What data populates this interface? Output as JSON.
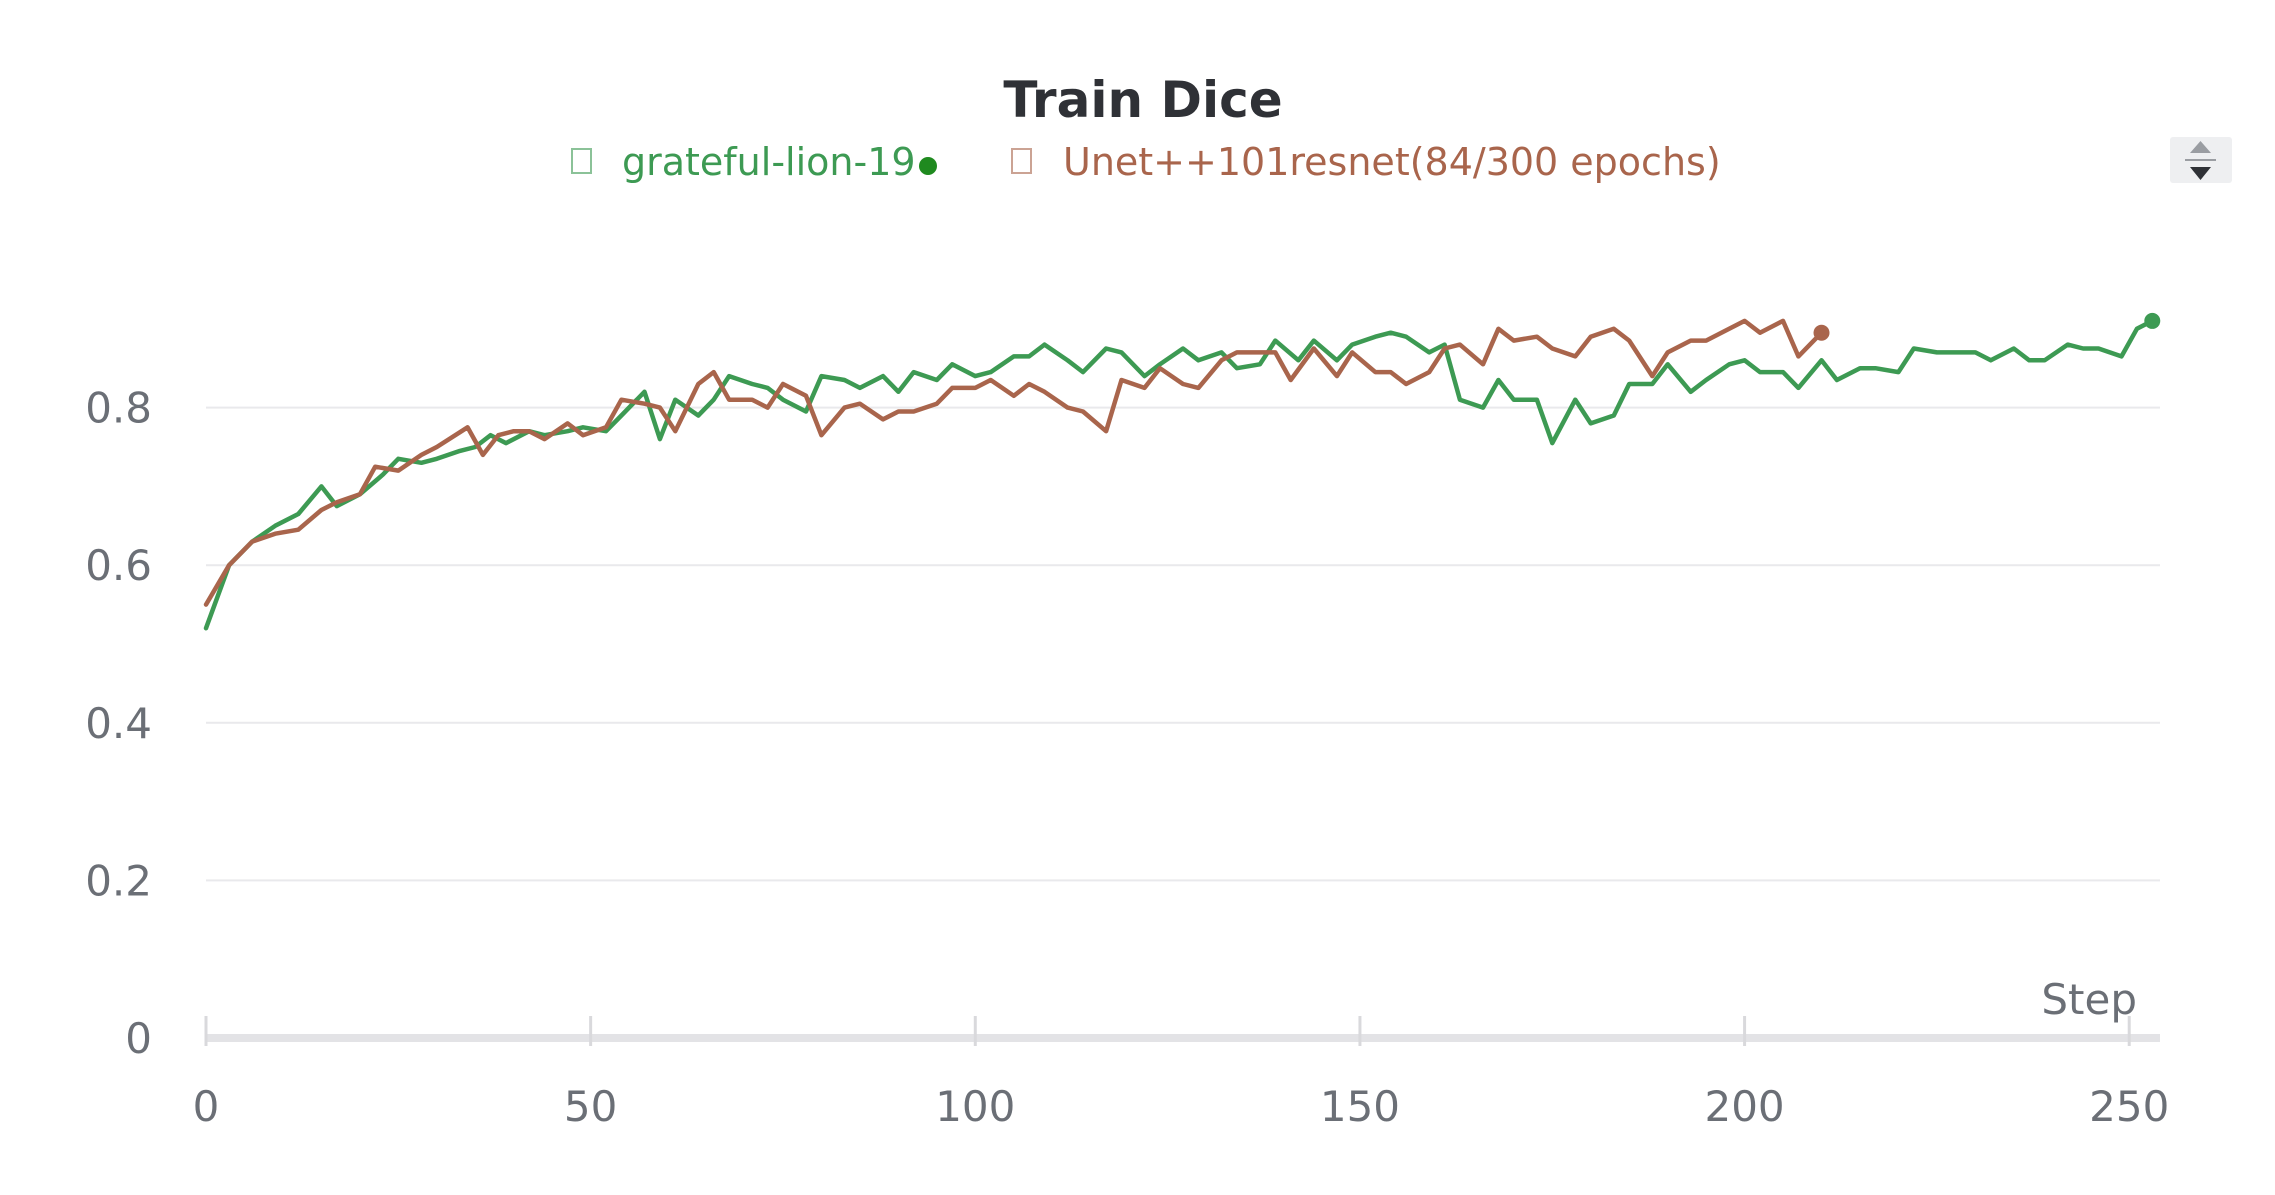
{
  "chart_data": {
    "type": "line",
    "title": "Train Dice",
    "xlabel": "Step",
    "ylabel": "",
    "xlim": [
      0,
      254
    ],
    "ylim": [
      0,
      1
    ],
    "x_ticks": [
      0,
      50,
      100,
      150,
      200,
      250
    ],
    "x_tick_labels": [
      "0",
      "50",
      "100",
      "150",
      "200",
      "250"
    ],
    "y_ticks": [
      0,
      0.2,
      0.4,
      0.6,
      0.8
    ],
    "y_tick_labels": [
      "0",
      "0.2",
      "0.4",
      "0.6",
      "0.8"
    ],
    "grid": true,
    "legend_position": "top-center",
    "series": [
      {
        "name": "grateful-lion-19",
        "color": "#3d9a53",
        "x": [
          0,
          3,
          6,
          9,
          12,
          15,
          17,
          20,
          23,
          25,
          28,
          30,
          33,
          35,
          37,
          39,
          42,
          44,
          47,
          49,
          52,
          54,
          57,
          59,
          61,
          64,
          66,
          68,
          71,
          73,
          75,
          78,
          80,
          83,
          85,
          88,
          90,
          92,
          95,
          97,
          100,
          102,
          105,
          107,
          109,
          112,
          114,
          117,
          119,
          122,
          124,
          127,
          129,
          132,
          134,
          137,
          139,
          142,
          144,
          147,
          149,
          152,
          154,
          156,
          159,
          161,
          163,
          166,
          168,
          170,
          173,
          175,
          178,
          180,
          183,
          185,
          188,
          190,
          193,
          195,
          198,
          200,
          202,
          205,
          207,
          210,
          212,
          215,
          217,
          220,
          222,
          225,
          227,
          230,
          232,
          235,
          237,
          239,
          242,
          244,
          246,
          249,
          251,
          253
        ],
        "y": [
          0.52,
          0.6,
          0.63,
          0.65,
          0.665,
          0.7,
          0.675,
          0.69,
          0.715,
          0.735,
          0.73,
          0.735,
          0.745,
          0.75,
          0.765,
          0.755,
          0.77,
          0.765,
          0.77,
          0.775,
          0.77,
          0.79,
          0.82,
          0.76,
          0.81,
          0.79,
          0.81,
          0.84,
          0.83,
          0.825,
          0.81,
          0.795,
          0.84,
          0.835,
          0.825,
          0.84,
          0.82,
          0.845,
          0.835,
          0.855,
          0.84,
          0.845,
          0.865,
          0.865,
          0.88,
          0.86,
          0.845,
          0.875,
          0.87,
          0.84,
          0.855,
          0.875,
          0.86,
          0.87,
          0.85,
          0.855,
          0.885,
          0.86,
          0.885,
          0.86,
          0.88,
          0.89,
          0.895,
          0.89,
          0.87,
          0.88,
          0.81,
          0.8,
          0.835,
          0.81,
          0.81,
          0.755,
          0.81,
          0.78,
          0.79,
          0.83,
          0.83,
          0.855,
          0.82,
          0.835,
          0.855,
          0.86,
          0.845,
          0.845,
          0.825,
          0.86,
          0.835,
          0.85,
          0.85,
          0.845,
          0.875,
          0.87,
          0.87,
          0.87,
          0.86,
          0.875,
          0.86,
          0.86,
          0.88,
          0.875,
          0.875,
          0.865,
          0.9,
          0.91
        ]
      },
      {
        "name": "Unet++101resnet(84/300 epochs)",
        "color": "#a9654c",
        "x": [
          0,
          3,
          6,
          9,
          12,
          15,
          17,
          20,
          22,
          25,
          28,
          30,
          34,
          36,
          38,
          40,
          42,
          44,
          47,
          49,
          52,
          54,
          57,
          59,
          61,
          64,
          66,
          68,
          71,
          73,
          75,
          78,
          80,
          83,
          85,
          88,
          90,
          92,
          95,
          97,
          100,
          102,
          105,
          107,
          109,
          112,
          114,
          117,
          119,
          122,
          124,
          127,
          129,
          132,
          134,
          137,
          139,
          141,
          144,
          147,
          149,
          152,
          154,
          156,
          159,
          161,
          163,
          166,
          168,
          170,
          173,
          175,
          178,
          180,
          183,
          185,
          188,
          190,
          193,
          195,
          198,
          200,
          202,
          205,
          207,
          210
        ],
        "y": [
          0.55,
          0.6,
          0.63,
          0.64,
          0.645,
          0.67,
          0.68,
          0.69,
          0.725,
          0.72,
          0.74,
          0.75,
          0.775,
          0.74,
          0.765,
          0.77,
          0.77,
          0.76,
          0.78,
          0.765,
          0.775,
          0.81,
          0.805,
          0.8,
          0.77,
          0.83,
          0.845,
          0.81,
          0.81,
          0.8,
          0.83,
          0.815,
          0.765,
          0.8,
          0.805,
          0.785,
          0.795,
          0.795,
          0.805,
          0.825,
          0.825,
          0.835,
          0.815,
          0.83,
          0.82,
          0.8,
          0.795,
          0.77,
          0.835,
          0.825,
          0.85,
          0.83,
          0.825,
          0.86,
          0.87,
          0.87,
          0.87,
          0.835,
          0.875,
          0.84,
          0.87,
          0.845,
          0.845,
          0.83,
          0.845,
          0.875,
          0.88,
          0.855,
          0.9,
          0.885,
          0.89,
          0.875,
          0.865,
          0.89,
          0.9,
          0.885,
          0.84,
          0.87,
          0.885,
          0.885,
          0.9,
          0.91,
          0.895,
          0.91,
          0.865,
          0.895
        ]
      }
    ]
  },
  "legend": {
    "items": [
      {
        "label": "grateful-lion-19",
        "color": "#3d9a53",
        "box_icon": "square-outline-icon",
        "dot_icon": "circle-dot-icon",
        "has_dot": true
      },
      {
        "label": "Unet++101resnet(84/300 epochs)",
        "color": "#a9654c",
        "box_icon": "square-outline-icon",
        "has_dot": false
      }
    ]
  },
  "controls": {
    "legend_scroll_icon": "up-down-arrows-icon"
  }
}
